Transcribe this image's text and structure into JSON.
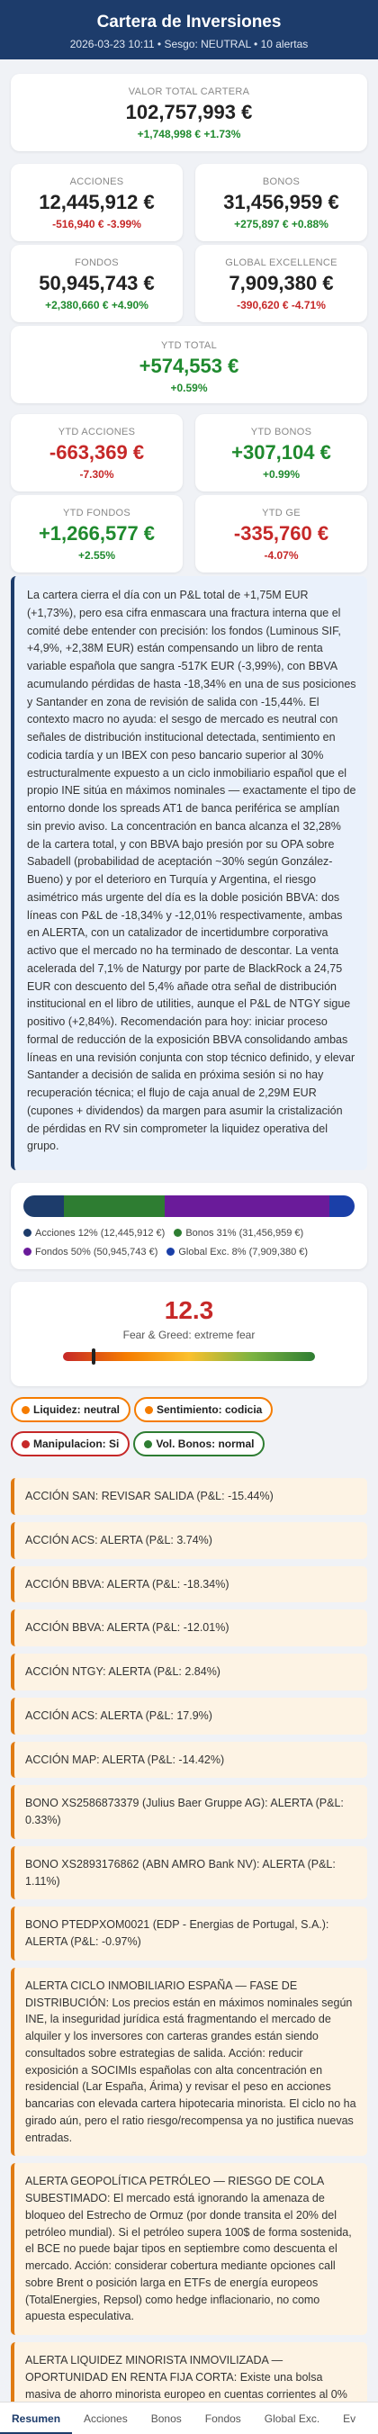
{
  "header": {
    "title": "Cartera de Inversiones",
    "subtitle": "2026-03-23 10:11 • Sesgo: NEUTRAL • 10 alertas"
  },
  "total": {
    "label": "VALOR TOTAL CARTERA",
    "value": "102,757,993 €",
    "change": "+1,748,998 € +1.73%"
  },
  "cards": [
    {
      "label": "ACCIONES",
      "value": "12,445,912 €",
      "change": "-516,940 € -3.99%",
      "sign": "neg"
    },
    {
      "label": "BONOS",
      "value": "31,456,959 €",
      "change": "+275,897 € +0.88%",
      "sign": "pos"
    },
    {
      "label": "FONDOS",
      "value": "50,945,743 €",
      "change": "+2,380,660 € +4.90%",
      "sign": "pos"
    },
    {
      "label": "GLOBAL EXCELLENCE",
      "value": "7,909,380 €",
      "change": "-390,620 € -4.71%",
      "sign": "neg"
    }
  ],
  "ytd_total": {
    "label": "YTD TOTAL",
    "value": "+574,553 €",
    "change": "+0.59%"
  },
  "ytd_cards": [
    {
      "label": "YTD ACCIONES",
      "value": "-663,369 €",
      "change": "-7.30%",
      "sign": "neg"
    },
    {
      "label": "YTD BONOS",
      "value": "+307,104 €",
      "change": "+0.99%",
      "sign": "pos"
    },
    {
      "label": "YTD FONDOS",
      "value": "+1,266,577 €",
      "change": "+2.55%",
      "sign": "pos"
    },
    {
      "label": "YTD GE",
      "value": "-335,760 €",
      "change": "-4.07%",
      "sign": "neg"
    }
  ],
  "commentary": "La cartera cierra el día con un P&L total de +1,75M EUR (+1,73%), pero esa cifra enmascara una fractura interna que el comité debe entender con precisión: los fondos (Luminous SIF, +4,9%, +2,38M EUR) están compensando un libro de renta variable española que sangra -517K EUR (-3,99%), con BBVA acumulando pérdidas de hasta -18,34% en una de sus posiciones y Santander en zona de revisión de salida con -15,44%. El contexto macro no ayuda: el sesgo de mercado es neutral con señales de distribución institucional detectada, sentimiento en codicia tardía y un IBEX con peso bancario superior al 30% estructuralmente expuesto a un ciclo inmobiliario español que el propio INE sitúa en máximos nominales — exactamente el tipo de entorno donde los spreads AT1 de banca periférica se amplían sin previo aviso. La concentración en banca alcanza el 32,28% de la cartera total, y con BBVA bajo presión por su OPA sobre Sabadell (probabilidad de aceptación ~30% según González-Bueno) y por el deterioro en Turquía y Argentina, el riesgo asimétrico más urgente del día es la doble posición BBVA: dos líneas con P&L de -18,34% y -12,01% respectivamente, ambas en ALERTA, con un catalizador de incertidumbre corporativa activo que el mercado no ha terminado de descontar. La venta acelerada del 7,1% de Naturgy por parte de BlackRock a 24,75 EUR con descuento del 5,4% añade otra señal de distribución institucional en el libro de utilities, aunque el P&L de NTGY sigue positivo (+2,84%). Recomendación para hoy: iniciar proceso formal de reducción de la exposición BBVA consolidando ambas líneas en una revisión conjunta con stop técnico definido, y elevar Santander a decisión de salida en próxima sesión si no hay recuperación técnica; el flujo de caja anual de 2,29M EUR (cupones + dividendos) da margen para asumir la cristalización de pérdidas en RV sin comprometer la liquidez operativa del grupo.",
  "allocation": {
    "segments": [
      {
        "name": "Acciones 12% (12,445,912 €)",
        "pct": 12.1,
        "color": "#1d3c6b"
      },
      {
        "name": "Bonos 31% (31,456,959 €)",
        "pct": 30.6,
        "color": "#2e7d32"
      },
      {
        "name": "Fondos 50% (50,945,743 €)",
        "pct": 49.6,
        "color": "#6a1b9a"
      },
      {
        "name": "Global Exc. 8% (7,909,380 €)",
        "pct": 7.7,
        "color": "#1a3fa8"
      }
    ]
  },
  "fear_greed": {
    "value": "12.3",
    "level": 0.123,
    "label": "Fear & Greed: extreme fear"
  },
  "badges": [
    {
      "text": "Liquidez: neutral",
      "style": "b-orange",
      "dot": "#f57c00"
    },
    {
      "text": "Sentimiento: codicia",
      "style": "b-orange",
      "dot": "#f57c00"
    },
    {
      "text": "Manipulacion: Si",
      "style": "b-red",
      "dot": "#c62828"
    },
    {
      "text": "Vol. Bonos: normal",
      "style": "b-green",
      "dot": "#2e7d32"
    }
  ],
  "alerts": [
    "ACCIÓN SAN: REVISAR SALIDA (P&L: -15.44%)",
    "ACCIÓN ACS: ALERTA (P&L: 3.74%)",
    "ACCIÓN BBVA: ALERTA (P&L: -18.34%)",
    "ACCIÓN BBVA: ALERTA (P&L: -12.01%)",
    "ACCIÓN NTGY: ALERTA (P&L: 2.84%)",
    "ACCIÓN ACS: ALERTA (P&L: 17.9%)",
    "ACCIÓN MAP: ALERTA (P&L: -14.42%)",
    "BONO XS2586873379 (Julius Baer Gruppe AG): ALERTA (P&L: 0.33%)",
    "BONO XS2893176862 (ABN AMRO Bank NV): ALERTA (P&L: 1.11%)",
    "BONO PTEDPXOM0021 (EDP - Energias de Portugal, S.A.): ALERTA (P&L: -0.97%)",
    "ALERTA CICLO INMOBILIARIO ESPAÑA — FASE DE DISTRIBUCIÓN: Los precios están en máximos nominales según INE, la inseguridad jurídica está fragmentando el mercado de alquiler y los inversores con carteras grandes están siendo consultados sobre estrategias de salida. Acción: reducir exposición a SOCIMIs españolas con alta concentración en residencial (Lar España, Árima) y revisar el peso en acciones bancarias con elevada cartera hipotecaria minorista. El ciclo no ha girado aún, pero el ratio riesgo/recompensa ya no justifica nuevas entradas.",
    "ALERTA GEOPOLÍTICA PETRÓLEO — RIESGO DE COLA SUBESTIMADO: El mercado está ignorando la amenaza de bloqueo del Estrecho de Ormuz (por donde transita el 20% del petróleo mundial). Si el petróleo supera 100$ de forma sostenida, el BCE no puede bajar tipos en septiembre como descuenta el mercado. Acción: considerar cobertura mediante opciones call sobre Brent o posición larga en ETFs de energía europeos (TotalEnergies, Repsol) como hedge inflacionario, no como apuesta especulativa.",
    "ALERTA LIQUIDEZ MINORISTA INMOVILIZADA — OPORTUNIDAD EN RENTA FIJA CORTA: Existe una bolsa masiva de ahorro minorista europeo en cuentas corrientes al 0% que no se ha desplegado. Cuando lo haga, los fondos monetarios y las letras del Tesoro a 3-6 meses serán el primer destino. Acción: posicionarse en fondos monetarios EUR de alta calidad."
  ],
  "tabs": [
    "Resumen",
    "Acciones",
    "Bonos",
    "Fondos",
    "Global Exc.",
    "Ev"
  ]
}
